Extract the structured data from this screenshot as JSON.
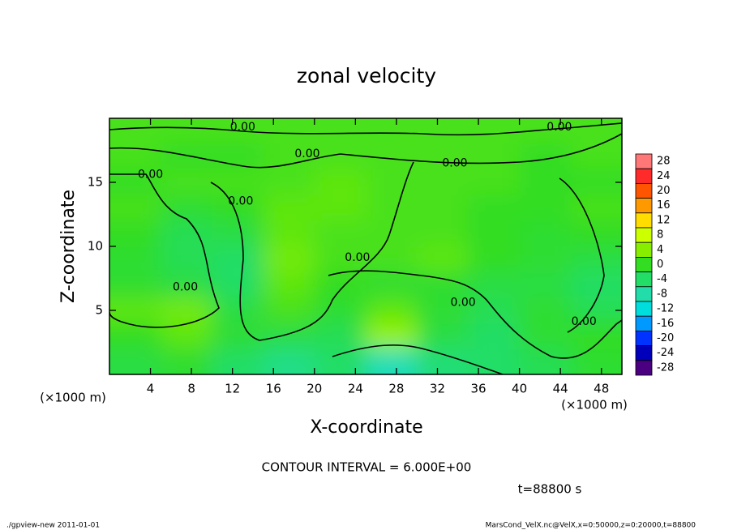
{
  "chart_data": {
    "type": "heatmap",
    "title": "zonal velocity",
    "xlabel": "X-coordinate",
    "ylabel": "Z-coordinate",
    "x_unit": "(×1000 m)",
    "y_unit": "(×1000 m)",
    "contour_interval": "CONTOUR INTERVAL = 6.000E+00",
    "time_label": "t=88800 s",
    "footer_left": "./gpview-new   2011-01-01",
    "footer_right": "MarsCond_VelX.nc@VelX,x=0:50000,z=0:20000,t=88800",
    "xlim": [
      0,
      50
    ],
    "ylim": [
      0,
      20
    ],
    "xticks": [
      4,
      8,
      12,
      16,
      20,
      24,
      28,
      32,
      36,
      40,
      44,
      48
    ],
    "yticks": [
      5,
      10,
      15
    ],
    "x": [
      2.5,
      7.5,
      12.5,
      17.5,
      22.5,
      27.5,
      32.5,
      37.5,
      42.5,
      47.5
    ],
    "y": [
      19,
      17,
      15,
      13,
      11,
      9,
      7,
      5,
      3,
      1
    ],
    "z": [
      [
        1,
        1,
        1,
        1,
        1,
        1,
        1,
        1,
        1,
        1
      ],
      [
        1,
        0,
        0,
        1,
        1,
        1,
        1,
        1,
        0,
        1
      ],
      [
        0,
        1,
        1,
        1,
        2,
        1,
        1,
        1,
        0,
        0
      ],
      [
        1,
        -1,
        0,
        2,
        2,
        1,
        1,
        0,
        0,
        1
      ],
      [
        0,
        -3,
        -2,
        2,
        1,
        1,
        1,
        0,
        -1,
        0
      ],
      [
        -1,
        -3,
        -4,
        3,
        1,
        1,
        2,
        0,
        -1,
        -2
      ],
      [
        -1,
        -2,
        -4,
        2,
        0,
        -1,
        -1,
        -2,
        -2,
        -4
      ],
      [
        2,
        3,
        -2,
        1,
        -1,
        2,
        -1,
        -3,
        -1,
        -3
      ],
      [
        0,
        2,
        -1,
        -2,
        -3,
        5,
        -2,
        -4,
        -1,
        0
      ],
      [
        -2,
        -1,
        -4,
        -6,
        -4,
        -9,
        -5,
        -4,
        -3,
        -1
      ]
    ],
    "contour_labels": [
      {
        "label": "0.00",
        "x": 13,
        "y": 19.3
      },
      {
        "label": "0.00",
        "x": 43.9,
        "y": 19.3
      },
      {
        "label": "0.00",
        "x": 19.3,
        "y": 17.2
      },
      {
        "label": "0.00",
        "x": 33.7,
        "y": 16.5
      },
      {
        "label": "0.00",
        "x": 4,
        "y": 15.6
      },
      {
        "label": "0.00",
        "x": 12.8,
        "y": 13.5
      },
      {
        "label": "0.00",
        "x": 24.2,
        "y": 9.1
      },
      {
        "label": "0.00",
        "x": 7.4,
        "y": 6.8
      },
      {
        "label": "0.00",
        "x": 34.5,
        "y": 5.6
      },
      {
        "label": "0.00",
        "x": 46.3,
        "y": 4.1
      }
    ],
    "cbar_lim": [
      -30,
      30
    ],
    "cbar_ticks": [
      28,
      24,
      20,
      16,
      12,
      8,
      4,
      0,
      -4,
      -8,
      -12,
      -16,
      -20,
      -24,
      -28
    ],
    "cbar_colors": [
      "#ff7777",
      "#ff2a2a",
      "#ff5500",
      "#ff9900",
      "#ffdd00",
      "#ccff00",
      "#88ee00",
      "#33dd22",
      "#22dd66",
      "#22ddaa",
      "#00dddd",
      "#0099ff",
      "#0033ff",
      "#0000bb",
      "#4b0082"
    ]
  }
}
